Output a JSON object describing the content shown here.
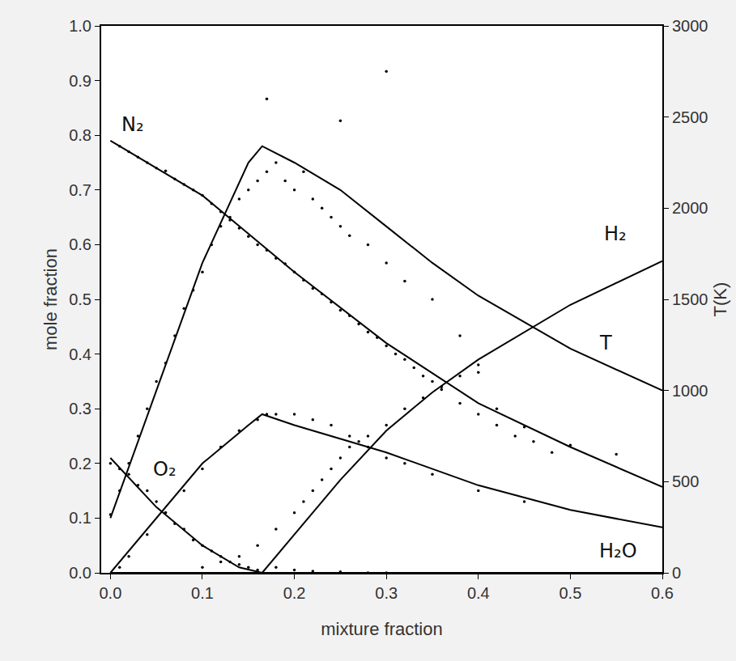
{
  "chart_data": {
    "type": "scatter",
    "xlabel": "mixture fraction",
    "ylabel": "mole fraction",
    "y2label": "T(K)",
    "grid": false,
    "xlim": [
      -0.01,
      0.6
    ],
    "xticks": [
      {
        "value": 0,
        "label": "0.0"
      },
      0.1,
      0.2,
      0.3,
      0.4,
      0.5,
      0.6
    ],
    "ylim": [
      0,
      1
    ],
    "yticks": [
      {
        "value": 0,
        "label": "0.0"
      },
      0.1,
      0.2,
      0.3,
      0.4,
      0.5,
      0.6,
      0.7,
      0.8,
      0.9,
      {
        "value": 1,
        "label": "1.0"
      }
    ],
    "y2lim": [
      0,
      3000
    ],
    "y2ticks": [
      0,
      500,
      1000,
      1500,
      2000,
      2500,
      3000
    ],
    "annotations": [
      {
        "text": "N₂",
        "x": 0.01,
        "y": 0.82
      },
      {
        "text": "O₂",
        "x": 0.045,
        "y": 0.19
      },
      {
        "text": "H₂",
        "x": 0.535,
        "y": 0.62
      },
      {
        "text": "T",
        "x": 0.53,
        "y": 0.42
      },
      {
        "text": "H₂O",
        "x": 0.53,
        "y": 0.04
      }
    ],
    "series": [
      {
        "type": "scatter",
        "marker": "dot",
        "color": "#000000",
        "x": [
          0.01,
          0.02,
          0.03,
          0.04,
          0.05,
          0.06,
          0.07,
          0.08,
          0.09,
          0.1,
          0.11,
          0.12,
          0.13,
          0.14,
          0.15,
          0.16,
          0.17,
          0.18,
          0.19,
          0.2,
          0.21,
          0.22,
          0.23,
          0.24,
          0.25,
          0.26,
          0.27,
          0.28,
          0.29,
          0.3,
          0.31,
          0.32,
          0.33,
          0.34,
          0.35,
          0.36,
          0.38,
          0.4,
          0.42,
          0.44,
          0.46,
          0.48
        ],
        "values": [
          0.78,
          0.77,
          0.76,
          0.75,
          0.74,
          0.735,
          0.72,
          0.71,
          0.7,
          0.69,
          0.675,
          0.66,
          0.645,
          0.63,
          0.615,
          0.6,
          0.59,
          0.575,
          0.565,
          0.55,
          0.535,
          0.52,
          0.51,
          0.495,
          0.48,
          0.47,
          0.455,
          0.44,
          0.43,
          0.415,
          0.4,
          0.39,
          0.375,
          0.36,
          0.35,
          0.335,
          0.31,
          0.29,
          0.27,
          0.25,
          0.24,
          0.22
        ]
      },
      {
        "type": "scatter",
        "marker": "dot",
        "color": "#000000",
        "x": [
          0.0,
          0.01,
          0.02,
          0.03,
          0.04,
          0.05,
          0.06,
          0.07,
          0.08,
          0.09,
          0.1,
          0.11,
          0.12,
          0.13,
          0.14,
          0.15,
          0.16,
          0.18,
          0.2,
          0.22,
          0.25,
          0.28,
          0.3
        ],
        "values": [
          0.2,
          0.19,
          0.18,
          0.16,
          0.15,
          0.13,
          0.11,
          0.09,
          0.08,
          0.06,
          0.05,
          0.04,
          0.03,
          0.02,
          0.015,
          0.01,
          0.005,
          0.01,
          0.005,
          0.003,
          0.002,
          0.0,
          0.0
        ]
      },
      {
        "type": "scatter",
        "marker": "dot",
        "color": "#000000",
        "x": [
          0.1,
          0.12,
          0.14,
          0.16,
          0.18,
          0.2,
          0.21,
          0.22,
          0.23,
          0.24,
          0.25,
          0.26,
          0.27,
          0.28,
          0.3,
          0.32,
          0.34,
          0.36,
          0.38,
          0.4
        ],
        "values": [
          0.01,
          0.02,
          0.03,
          0.05,
          0.08,
          0.11,
          0.13,
          0.15,
          0.17,
          0.19,
          0.21,
          0.23,
          0.24,
          0.25,
          0.27,
          0.3,
          0.32,
          0.34,
          0.36,
          0.38
        ]
      },
      {
        "type": "scatter",
        "marker": "dot",
        "color": "#000000",
        "x": [
          0.01,
          0.02,
          0.04,
          0.06,
          0.08,
          0.1,
          0.12,
          0.14,
          0.16,
          0.17,
          0.18,
          0.2,
          0.22,
          0.24,
          0.26,
          0.28,
          0.3,
          0.32,
          0.35,
          0.4,
          0.45
        ],
        "values": [
          0.01,
          0.03,
          0.07,
          0.11,
          0.15,
          0.19,
          0.23,
          0.26,
          0.28,
          0.29,
          0.29,
          0.29,
          0.28,
          0.27,
          0.25,
          0.23,
          0.21,
          0.2,
          0.18,
          0.15,
          0.13
        ]
      },
      {
        "type": "scatter",
        "marker": "dot",
        "color": "#000000",
        "axis": "y2",
        "x": [
          0.0,
          0.01,
          0.02,
          0.03,
          0.04,
          0.05,
          0.06,
          0.07,
          0.08,
          0.09,
          0.1,
          0.11,
          0.12,
          0.13,
          0.14,
          0.15,
          0.16,
          0.17,
          0.18,
          0.19,
          0.2,
          0.21,
          0.22,
          0.23,
          0.24,
          0.25,
          0.26,
          0.28,
          0.3,
          0.32,
          0.35,
          0.38,
          0.4,
          0.42,
          0.45,
          0.5,
          0.55,
          0.17,
          0.3,
          0.25
        ],
        "values": [
          320,
          450,
          600,
          750,
          900,
          1050,
          1150,
          1300,
          1450,
          1550,
          1650,
          1800,
          1900,
          1950,
          2050,
          2100,
          2150,
          2200,
          2250,
          2150,
          2100,
          2200,
          2050,
          2000,
          1950,
          1900,
          1850,
          1800,
          1700,
          1600,
          1500,
          1300,
          1100,
          900,
          800,
          700,
          650,
          2600,
          2750,
          2480
        ]
      },
      {
        "type": "line",
        "color": "#000000",
        "x": [
          0,
          0.1,
          0.2,
          0.3,
          0.4,
          0.5,
          0.6
        ],
        "values": [
          0.79,
          0.69,
          0.55,
          0.42,
          0.31,
          0.23,
          0.157
        ]
      },
      {
        "type": "line",
        "color": "#000000",
        "x": [
          0,
          0.05,
          0.1,
          0.14,
          0.165,
          0.3,
          0.6
        ],
        "values": [
          0.21,
          0.12,
          0.05,
          0.01,
          0.0,
          0.0,
          0.0
        ]
      },
      {
        "type": "line",
        "color": "#000000",
        "x": [
          0,
          0.165,
          0.2,
          0.25,
          0.3,
          0.35,
          0.4,
          0.5,
          0.6
        ],
        "values": [
          0.0,
          0.0,
          0.07,
          0.17,
          0.26,
          0.33,
          0.39,
          0.49,
          0.57
        ]
      },
      {
        "type": "line",
        "color": "#000000",
        "x": [
          0,
          0.05,
          0.1,
          0.15,
          0.165,
          0.2,
          0.25,
          0.3,
          0.4,
          0.5,
          0.6
        ],
        "values": [
          0.0,
          0.1,
          0.2,
          0.27,
          0.29,
          0.27,
          0.245,
          0.22,
          0.16,
          0.115,
          0.083
        ]
      },
      {
        "type": "line",
        "color": "#000000",
        "axis": "y2",
        "x": [
          0,
          0.05,
          0.1,
          0.15,
          0.165,
          0.2,
          0.25,
          0.3,
          0.35,
          0.4,
          0.5,
          0.6
        ],
        "values": [
          300,
          1000,
          1700,
          2250,
          2340,
          2250,
          2100,
          1900,
          1700,
          1520,
          1230,
          1000
        ]
      }
    ]
  }
}
